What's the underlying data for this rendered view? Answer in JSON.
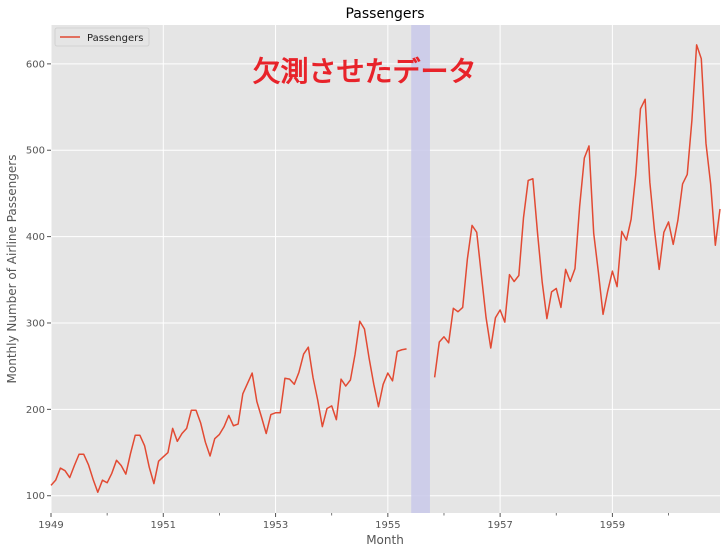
{
  "chart_data": {
    "type": "line",
    "title": "Passengers",
    "xlabel": "Month",
    "ylabel": "Monthly Number of Airline Passengers",
    "x_tick_labels": [
      "1949",
      "1951",
      "1953",
      "1955",
      "1957",
      "1959"
    ],
    "x_ticks": [
      "1949-01",
      "1951-01",
      "1953-01",
      "1955-01",
      "1957-01",
      "1959-01"
    ],
    "y_ticks": [
      100,
      200,
      300,
      400,
      500,
      600
    ],
    "xlim": [
      "1949-01",
      "1960-12"
    ],
    "ylim": [
      80,
      645
    ],
    "grid": true,
    "legend_position": "top-left",
    "legend": [
      "Passengers"
    ],
    "colors": {
      "line": "#e24a33",
      "plot_bg": "#e5e5e5",
      "grid": "#ffffff",
      "shade": "#c9c9ea",
      "annotation": "#e8232a"
    },
    "series": [
      {
        "name": "Passengers",
        "start": "1949-01",
        "values": [
          112,
          118,
          132,
          129,
          121,
          135,
          148,
          148,
          136,
          119,
          104,
          118,
          115,
          126,
          141,
          135,
          125,
          149,
          170,
          170,
          158,
          133,
          114,
          140,
          145,
          150,
          178,
          163,
          172,
          178,
          199,
          199,
          184,
          162,
          146,
          166,
          171,
          180,
          193,
          181,
          183,
          218,
          230,
          242,
          209,
          191,
          172,
          194,
          196,
          196,
          236,
          235,
          229,
          243,
          264,
          272,
          237,
          211,
          180,
          201,
          204,
          188,
          235,
          227,
          234,
          264,
          302,
          293,
          259,
          229,
          203,
          229,
          242,
          233,
          267,
          269,
          270,
          null,
          null,
          null,
          null,
          null,
          237,
          278,
          284,
          277,
          317,
          313,
          318,
          374,
          413,
          405,
          355,
          306,
          271,
          306,
          315,
          301,
          356,
          348,
          355,
          422,
          465,
          467,
          404,
          347,
          305,
          336,
          340,
          318,
          362,
          348,
          363,
          435,
          491,
          505,
          404,
          359,
          310,
          337,
          360,
          342,
          406,
          396,
          420,
          472,
          548,
          559,
          463,
          407,
          362,
          405,
          417,
          391,
          419,
          461,
          472,
          535,
          622,
          606,
          508,
          461,
          390,
          432
        ]
      }
    ],
    "shaded_region": {
      "start": "1955-06",
      "end": "1955-10"
    },
    "annotations": [
      {
        "text": "欠測させたデータ",
        "x": "1954-08",
        "y": 580
      }
    ]
  }
}
